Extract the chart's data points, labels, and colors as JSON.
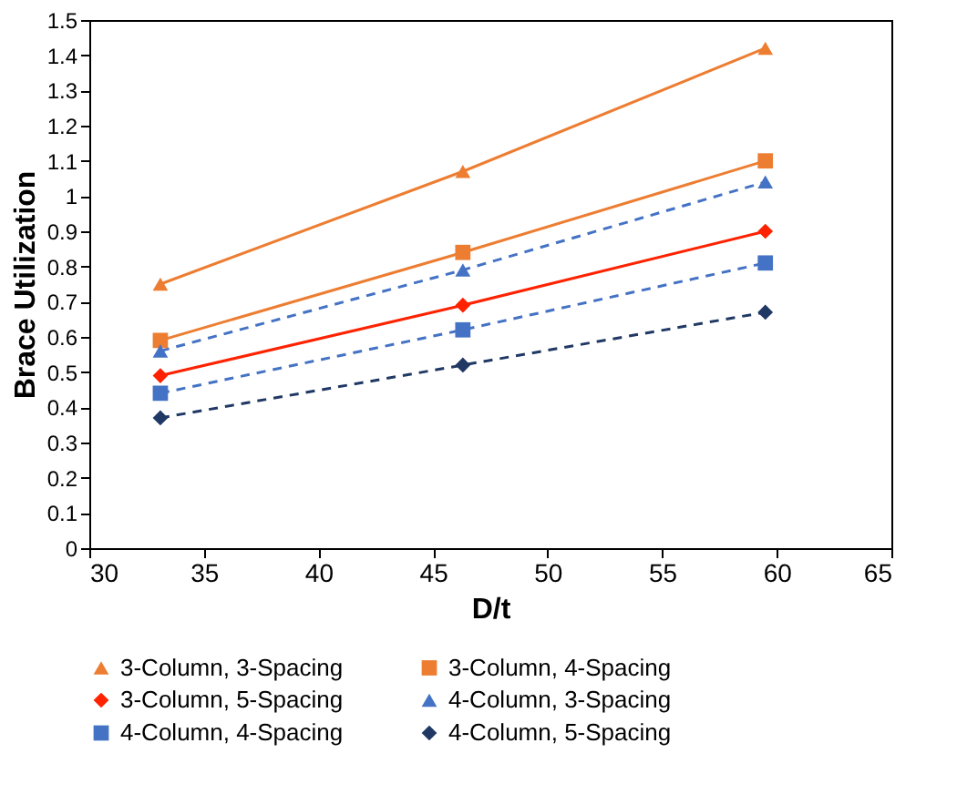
{
  "chart_data": {
    "type": "line",
    "xlabel": "D/t",
    "ylabel": "Brace Utilization",
    "x": [
      33.1,
      46.3,
      59.5
    ],
    "xlim": [
      30,
      65
    ],
    "xticks": [
      30,
      35,
      40,
      45,
      50,
      55,
      60,
      65
    ],
    "ylim": [
      0,
      1.5
    ],
    "yticks": [
      0,
      0.1,
      0.2,
      0.3,
      0.4,
      0.5,
      0.6,
      0.7,
      0.8,
      0.9,
      1,
      1.1,
      1.2,
      1.3,
      1.4,
      1.5
    ],
    "legend": "bottom",
    "grid": false,
    "series": [
      {
        "name": "3-Column, 3-Spacing",
        "color": "#ed7d31",
        "marker": "triangle",
        "line_style": "solid",
        "values": [
          0.75,
          1.07,
          1.42
        ]
      },
      {
        "name": "3-Column, 4-Spacing",
        "color": "#ed7d31",
        "marker": "square",
        "line_style": "solid",
        "values": [
          0.59,
          0.84,
          1.1
        ]
      },
      {
        "name": "3-Column, 5-Spacing",
        "color": "#ff2200",
        "marker": "diamond",
        "line_style": "solid",
        "values": [
          0.49,
          0.69,
          0.9
        ]
      },
      {
        "name": "4-Column, 3-Spacing",
        "color": "#4472c4",
        "marker": "triangle",
        "line_style": "dashed",
        "values": [
          0.56,
          0.79,
          1.04
        ]
      },
      {
        "name": "4-Column, 4-Spacing",
        "color": "#4472c4",
        "marker": "square",
        "line_style": "dashed",
        "values": [
          0.44,
          0.62,
          0.81
        ]
      },
      {
        "name": "4-Column, 5-Spacing",
        "color": "#203864",
        "marker": "diamond",
        "line_style": "dashed",
        "values": [
          0.37,
          0.52,
          0.67
        ]
      }
    ]
  }
}
